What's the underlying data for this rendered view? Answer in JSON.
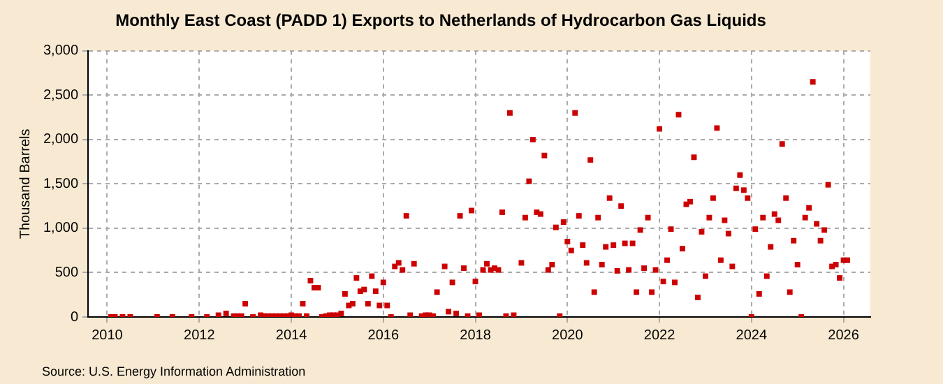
{
  "chart_data": {
    "type": "scatter",
    "title": "Monthly East Coast (PADD 1) Exports to Netherlands of Hydrocarbon Gas Liquids",
    "ylabel": "Thousand Barrels",
    "annotations": [
      "Source: U.S. Energy Information Administration"
    ],
    "x": [
      "2010-02",
      "2010-03",
      "2010-05",
      "2010-07",
      "2011-02",
      "2011-06",
      "2011-11",
      "2012-03",
      "2012-06",
      "2012-08",
      "2012-10",
      "2012-11",
      "2012-12",
      "2013-01",
      "2013-03",
      "2013-05",
      "2013-06",
      "2013-07",
      "2013-08",
      "2013-09",
      "2013-10",
      "2013-11",
      "2013-12",
      "2014-01",
      "2014-02",
      "2014-03",
      "2014-04",
      "2014-05",
      "2014-06",
      "2014-07",
      "2014-08",
      "2014-09",
      "2014-10",
      "2014-11",
      "2014-12",
      "2015-01",
      "2015-02",
      "2015-03",
      "2015-04",
      "2015-05",
      "2015-06",
      "2015-07",
      "2015-08",
      "2015-09",
      "2015-10",
      "2015-11",
      "2015-12",
      "2016-01",
      "2016-02",
      "2016-03",
      "2016-04",
      "2016-05",
      "2016-06",
      "2016-07",
      "2016-08",
      "2016-09",
      "2016-11",
      "2016-12",
      "2017-01",
      "2017-02",
      "2017-03",
      "2017-05",
      "2017-06",
      "2017-07",
      "2017-08",
      "2017-09",
      "2017-10",
      "2017-11",
      "2017-12",
      "2018-01",
      "2018-02",
      "2018-03",
      "2018-04",
      "2018-05",
      "2018-06",
      "2018-07",
      "2018-08",
      "2018-09",
      "2018-10",
      "2018-11",
      "2019-01",
      "2019-02",
      "2019-03",
      "2019-04",
      "2019-05",
      "2019-06",
      "2019-07",
      "2019-08",
      "2019-09",
      "2019-10",
      "2019-11",
      "2019-12",
      "2020-01",
      "2020-02",
      "2020-03",
      "2020-04",
      "2020-05",
      "2020-06",
      "2020-07",
      "2020-08",
      "2020-09",
      "2020-10",
      "2020-11",
      "2020-12",
      "2021-01",
      "2021-02",
      "2021-03",
      "2021-04",
      "2021-05",
      "2021-06",
      "2021-07",
      "2021-08",
      "2021-09",
      "2021-10",
      "2021-11",
      "2021-12",
      "2022-01",
      "2022-02",
      "2022-03",
      "2022-04",
      "2022-05",
      "2022-06",
      "2022-07",
      "2022-08",
      "2022-09",
      "2022-10",
      "2022-11",
      "2022-12",
      "2023-01",
      "2023-02",
      "2023-03",
      "2023-04",
      "2023-05",
      "2023-06",
      "2023-07",
      "2023-08",
      "2023-09",
      "2023-10",
      "2023-11",
      "2023-12",
      "2024-01",
      "2024-02",
      "2024-03",
      "2024-04",
      "2024-05",
      "2024-06",
      "2024-07",
      "2024-08",
      "2024-09",
      "2024-10",
      "2024-11",
      "2024-12",
      "2025-01",
      "2025-02",
      "2025-03",
      "2025-04",
      "2025-05",
      "2025-06",
      "2025-07",
      "2025-08",
      "2025-09",
      "2025-10",
      "2025-11",
      "2025-12",
      "2026-01",
      "2026-02"
    ],
    "series": [
      {
        "color": "#cc0000",
        "values": [
          0,
          0,
          0,
          0,
          0,
          0,
          0,
          0,
          20,
          40,
          10,
          10,
          10,
          150,
          0,
          20,
          10,
          10,
          10,
          10,
          10,
          10,
          10,
          20,
          10,
          10,
          150,
          10,
          410,
          330,
          330,
          0,
          10,
          20,
          20,
          20,
          40,
          260,
          130,
          150,
          440,
          290,
          310,
          150,
          460,
          290,
          130,
          390,
          130,
          0,
          570,
          610,
          530,
          1140,
          20,
          600,
          10,
          20,
          20,
          10,
          280,
          570,
          60,
          390,
          40,
          1140,
          550,
          10,
          1200,
          400,
          20,
          530,
          600,
          530,
          550,
          530,
          1180,
          10,
          2300,
          20,
          610,
          1120,
          1530,
          2000,
          1180,
          1160,
          1820,
          530,
          590,
          1010,
          10,
          1070,
          850,
          750,
          2300,
          1140,
          810,
          610,
          1770,
          280,
          1120,
          590,
          790,
          1340,
          810,
          520,
          1250,
          830,
          530,
          830,
          280,
          980,
          550,
          1120,
          280,
          530,
          2120,
          400,
          640,
          990,
          390,
          2280,
          770,
          1270,
          1300,
          1800,
          220,
          960,
          460,
          1120,
          1340,
          2130,
          640,
          1090,
          940,
          570,
          1450,
          1600,
          1430,
          1340,
          0,
          990,
          260,
          1120,
          460,
          790,
          1160,
          1090,
          1950,
          1340,
          280,
          860,
          590,
          0,
          1120,
          1230,
          2650,
          1050,
          860,
          980,
          1490,
          570,
          590,
          440,
          640,
          640
        ]
      }
    ],
    "xlim": [
      "2009-08",
      "2026-08"
    ],
    "xticks": [
      "2010",
      "2012",
      "2014",
      "2016",
      "2018",
      "2020",
      "2022",
      "2024",
      "2026"
    ],
    "ylim": [
      0,
      3000
    ],
    "yticks": [
      0,
      500,
      {
        "value": 1000,
        "label": "1,000"
      },
      {
        "value": 1500,
        "label": "1,500"
      },
      {
        "value": 2000,
        "label": "2,000"
      },
      {
        "value": 2500,
        "label": "2,500"
      },
      {
        "value": 3000,
        "label": "3,000"
      }
    ],
    "grid": true,
    "marker": "square",
    "legend": false
  }
}
